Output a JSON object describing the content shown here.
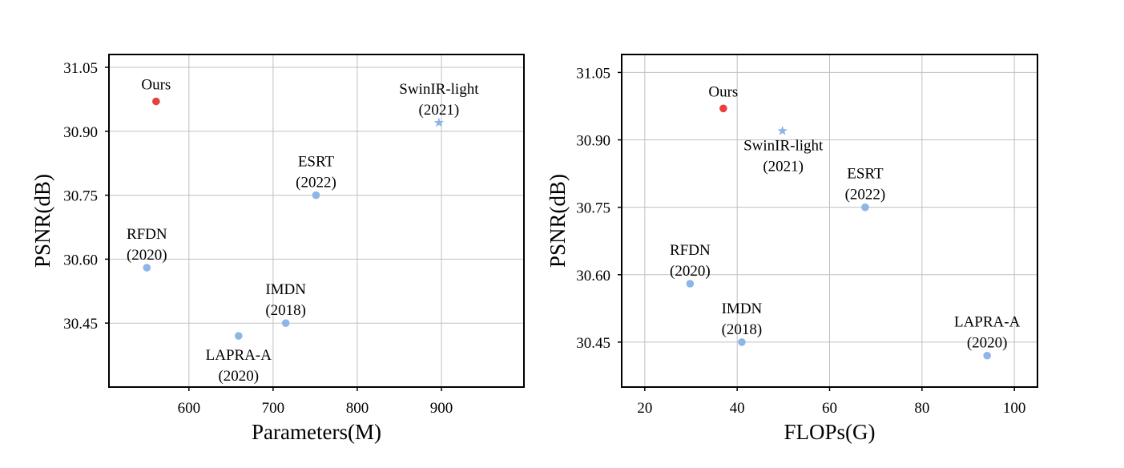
{
  "colors": {
    "ours": "#e8403e",
    "others": "#8fb4e6",
    "grid": "#c0c0c0",
    "axis": "#000000"
  },
  "chart_data": [
    {
      "type": "scatter",
      "xlabel": "Parameters(M)",
      "ylabel": "PSNR(dB)",
      "xlim": [
        505,
        998
      ],
      "ylim": [
        30.3,
        31.08
      ],
      "xticks": [
        600,
        700,
        800,
        900
      ],
      "yticks": [
        30.45,
        30.6,
        30.75,
        30.9,
        31.05
      ],
      "ytick_labels": [
        "30.45",
        "30.60",
        "30.75",
        "30.90",
        "31.05"
      ],
      "grid": true,
      "points": [
        {
          "label": "Ours",
          "year": "",
          "x": 561,
          "y": 30.97,
          "marker": "circle",
          "highlight": true,
          "ann_pos": "above"
        },
        {
          "label": "SwinIR-light",
          "year": "(2021)",
          "x": 897,
          "y": 30.92,
          "marker": "star",
          "highlight": false,
          "ann_pos": "above"
        },
        {
          "label": "ESRT",
          "year": "(2022)",
          "x": 751,
          "y": 30.75,
          "marker": "circle",
          "highlight": false,
          "ann_pos": "above"
        },
        {
          "label": "RFDN",
          "year": "(2020)",
          "x": 550,
          "y": 30.58,
          "marker": "circle",
          "highlight": false,
          "ann_pos": "above"
        },
        {
          "label": "IMDN",
          "year": "(2018)",
          "x": 715,
          "y": 30.45,
          "marker": "circle",
          "highlight": false,
          "ann_pos": "above"
        },
        {
          "label": "LAPRA-A",
          "year": "(2020)",
          "x": 659,
          "y": 30.42,
          "marker": "circle",
          "highlight": false,
          "ann_pos": "below"
        }
      ]
    },
    {
      "type": "scatter",
      "xlabel": "FLOPs(G)",
      "ylabel": "PSNR(dB)",
      "xlim": [
        15,
        105
      ],
      "ylim": [
        30.35,
        31.09
      ],
      "xticks": [
        20,
        40,
        60,
        80,
        100
      ],
      "yticks": [
        30.45,
        30.6,
        30.75,
        30.9,
        31.05
      ],
      "ytick_labels": [
        "30.45",
        "30.60",
        "30.75",
        "30.90",
        "31.05"
      ],
      "grid": true,
      "points": [
        {
          "label": "Ours",
          "year": "",
          "x": 37,
          "y": 30.97,
          "marker": "circle",
          "highlight": true,
          "ann_pos": "above"
        },
        {
          "label": "SwinIR-light",
          "year": "(2021)",
          "x": 49.8,
          "y": 30.92,
          "marker": "star",
          "highlight": false,
          "ann_pos": "below"
        },
        {
          "label": "ESRT",
          "year": "(2022)",
          "x": 67.7,
          "y": 30.75,
          "marker": "circle",
          "highlight": false,
          "ann_pos": "above"
        },
        {
          "label": "RFDN",
          "year": "(2020)",
          "x": 29.8,
          "y": 30.58,
          "marker": "circle",
          "highlight": false,
          "ann_pos": "above"
        },
        {
          "label": "IMDN",
          "year": "(2018)",
          "x": 41,
          "y": 30.45,
          "marker": "circle",
          "highlight": false,
          "ann_pos": "above"
        },
        {
          "label": "LAPRA-A",
          "year": "(2020)",
          "x": 94.1,
          "y": 30.42,
          "marker": "circle",
          "highlight": false,
          "ann_pos": "above"
        }
      ]
    }
  ]
}
